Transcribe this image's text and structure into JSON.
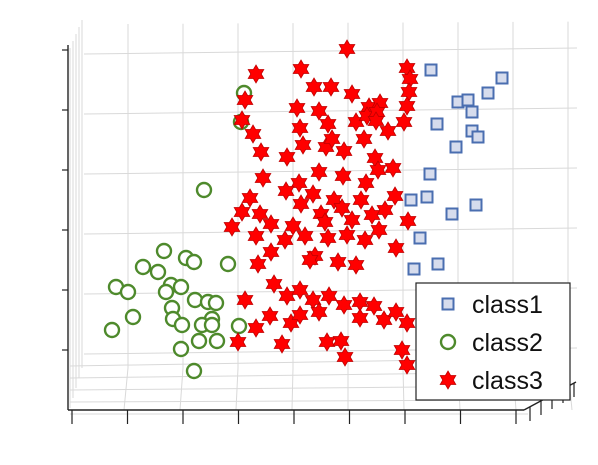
{
  "chart_data": {
    "type": "scatter",
    "title": "",
    "xlabel": "",
    "ylabel": "",
    "grid": true,
    "legend_position": "bottom-right",
    "series": [
      {
        "name": "class1",
        "marker": "square",
        "color": "#4a6eb0",
        "points": [
          [
            431,
            70
          ],
          [
            502,
            78
          ],
          [
            458,
            102
          ],
          [
            468,
            100
          ],
          [
            488,
            93
          ],
          [
            472,
            112
          ],
          [
            437,
            124
          ],
          [
            456,
            147
          ],
          [
            472,
            131
          ],
          [
            478,
            137
          ],
          [
            430,
            174
          ],
          [
            411,
            200
          ],
          [
            427,
            197
          ],
          [
            476,
            205
          ],
          [
            452,
            214
          ],
          [
            420,
            238
          ],
          [
            438,
            264
          ],
          [
            414,
            269
          ]
        ]
      },
      {
        "name": "class2",
        "marker": "circle",
        "color": "#4e8a2c",
        "points": [
          [
            244,
            93
          ],
          [
            241,
            122
          ],
          [
            204,
            190
          ],
          [
            164,
            251
          ],
          [
            143,
            267
          ],
          [
            186,
            258
          ],
          [
            194,
            262
          ],
          [
            228,
            264
          ],
          [
            158,
            272
          ],
          [
            171,
            285
          ],
          [
            116,
            287
          ],
          [
            128,
            292
          ],
          [
            166,
            292
          ],
          [
            181,
            287
          ],
          [
            195,
            300
          ],
          [
            208,
            302
          ],
          [
            216,
            303
          ],
          [
            212,
            319
          ],
          [
            172,
            308
          ],
          [
            173,
            319
          ],
          [
            133,
            317
          ],
          [
            182,
            325
          ],
          [
            202,
            325
          ],
          [
            212,
            325
          ],
          [
            239,
            326
          ],
          [
            112,
            330
          ],
          [
            199,
            341
          ],
          [
            217,
            341
          ],
          [
            181,
            349
          ],
          [
            194,
            371
          ]
        ]
      },
      {
        "name": "class3",
        "marker": "hexagram",
        "color": "#ff0000",
        "points": [
          [
            347,
            49
          ],
          [
            256,
            74
          ],
          [
            301,
            69
          ],
          [
            407,
            68
          ],
          [
            410,
            79
          ],
          [
            245,
            100
          ],
          [
            314,
            87
          ],
          [
            331,
            87
          ],
          [
            352,
            94
          ],
          [
            369,
            107
          ],
          [
            380,
            103
          ],
          [
            409,
            92
          ],
          [
            407,
            106
          ],
          [
            404,
            122
          ],
          [
            242,
            120
          ],
          [
            253,
            134
          ],
          [
            297,
            108
          ],
          [
            300,
            128
          ],
          [
            319,
            111
          ],
          [
            328,
            124
          ],
          [
            356,
            122
          ],
          [
            367,
            116
          ],
          [
            377,
            112
          ],
          [
            376,
            121
          ],
          [
            261,
            152
          ],
          [
            287,
            157
          ],
          [
            303,
            145
          ],
          [
            326,
            147
          ],
          [
            332,
            139
          ],
          [
            344,
            151
          ],
          [
            364,
            139
          ],
          [
            388,
            131
          ],
          [
            375,
            158
          ],
          [
            393,
            168
          ],
          [
            263,
            178
          ],
          [
            299,
            183
          ],
          [
            319,
            172
          ],
          [
            343,
            176
          ],
          [
            366,
            183
          ],
          [
            378,
            170
          ],
          [
            395,
            196
          ],
          [
            408,
            221
          ],
          [
            232,
            227
          ],
          [
            242,
            212
          ],
          [
            250,
            198
          ],
          [
            260,
            214
          ],
          [
            271,
            224
          ],
          [
            286,
            191
          ],
          [
            301,
            204
          ],
          [
            313,
            194
          ],
          [
            321,
            214
          ],
          [
            334,
            200
          ],
          [
            342,
            208
          ],
          [
            352,
            220
          ],
          [
            361,
            200
          ],
          [
            372,
            215
          ],
          [
            385,
            210
          ],
          [
            293,
            226
          ],
          [
            305,
            236
          ],
          [
            328,
            238
          ],
          [
            347,
            235
          ],
          [
            365,
            240
          ],
          [
            379,
            230
          ],
          [
            396,
            248
          ],
          [
            256,
            236
          ],
          [
            271,
            252
          ],
          [
            285,
            240
          ],
          [
            258,
            264
          ],
          [
            274,
            284
          ],
          [
            287,
            296
          ],
          [
            300,
            290
          ],
          [
            313,
            300
          ],
          [
            329,
            296
          ],
          [
            344,
            305
          ],
          [
            360,
            302
          ],
          [
            374,
            306
          ],
          [
            384,
            320
          ],
          [
            396,
            312
          ],
          [
            407,
            323
          ],
          [
            245,
            300
          ],
          [
            270,
            316
          ],
          [
            291,
            323
          ],
          [
            300,
            315
          ],
          [
            319,
            312
          ],
          [
            256,
            328
          ],
          [
            238,
            342
          ],
          [
            282,
            344
          ],
          [
            327,
            342
          ],
          [
            341,
            341
          ],
          [
            345,
            357
          ],
          [
            402,
            350
          ],
          [
            407,
            365
          ],
          [
            315,
            256
          ],
          [
            338,
            262
          ],
          [
            356,
            265
          ],
          [
            325,
            222
          ],
          [
            310,
            260
          ],
          [
            360,
            318
          ]
        ]
      }
    ]
  }
}
